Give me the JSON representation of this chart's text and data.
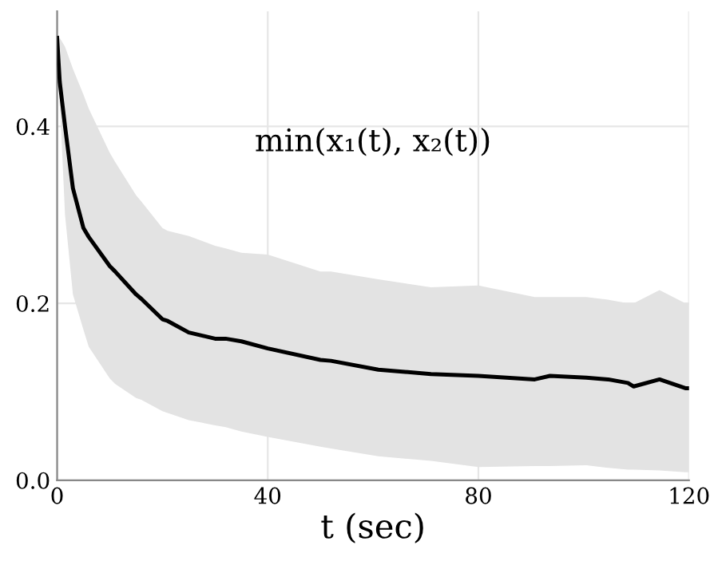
{
  "chart_data": {
    "type": "line",
    "xlabel": "t (sec)",
    "annotations": [
      "min(x₁(t), x₂(t))"
    ],
    "xlim": [
      0,
      120
    ],
    "ylim": [
      0,
      0.53
    ],
    "xticks": [
      0,
      40,
      80,
      120
    ],
    "yticks": [
      {
        "value": 0,
        "label": "0.0"
      },
      {
        "value": 0.2,
        "label": "0.2"
      },
      {
        "value": 0.4,
        "label": "0.4"
      }
    ],
    "grid": true,
    "marker": "none",
    "line_style": "solid",
    "series": [
      {
        "color": "#000000",
        "x": [
          0,
          0.5,
          1.5,
          3,
          5,
          6,
          10,
          11,
          15,
          16,
          20,
          21,
          25,
          30,
          32,
          35,
          40,
          50,
          52,
          61,
          71,
          80,
          90.7,
          93.6,
          100.5,
          104.6,
          108.4,
          109.5,
          114.4,
          119.3,
          120
        ],
        "values": [
          0.5,
          0.45,
          0.4,
          0.33,
          0.285,
          0.275,
          0.242,
          0.236,
          0.21,
          0.205,
          0.182,
          0.18,
          0.167,
          0.16,
          0.16,
          0.157,
          0.149,
          0.136,
          0.135,
          0.125,
          0.12,
          0.118,
          0.114,
          0.118,
          0.116,
          0.114,
          0.11,
          0.106,
          0.114,
          0.104,
          0.104
        ],
        "upper": [
          0.5,
          0.5,
          0.49,
          0.465,
          0.436,
          0.42,
          0.37,
          0.36,
          0.322,
          0.315,
          0.285,
          0.282,
          0.276,
          0.265,
          0.262,
          0.257,
          0.255,
          0.236,
          0.236,
          0.227,
          0.218,
          0.22,
          0.207,
          0.207,
          0.207,
          0.204,
          0.2,
          0.2,
          0.215,
          0.2,
          0.2
        ],
        "lower": [
          0.5,
          0.43,
          0.3,
          0.21,
          0.17,
          0.151,
          0.115,
          0.109,
          0.093,
          0.091,
          0.078,
          0.076,
          0.068,
          0.062,
          0.06,
          0.055,
          0.049,
          0.038,
          0.036,
          0.027,
          0.022,
          0.015,
          0.016,
          0.016,
          0.017,
          0.014,
          0.012,
          0.012,
          0.011,
          0.009,
          0.009
        ]
      }
    ]
  }
}
